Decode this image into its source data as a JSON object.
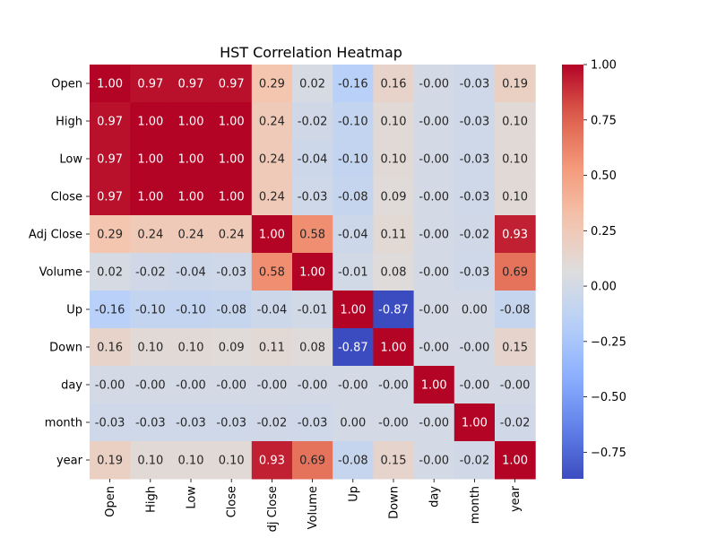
{
  "chart_data": {
    "type": "heatmap",
    "title": "HST Correlation Heatmap",
    "x_labels": [
      "Open",
      "High",
      "Low",
      "Close",
      "dj Close",
      "Volume",
      "Up",
      "Down",
      "day",
      "month",
      "year"
    ],
    "y_labels": [
      "Open",
      "High",
      "Low",
      "Close",
      "Adj Close",
      "Volume",
      "Up",
      "Down",
      "day",
      "month",
      "year"
    ],
    "values": [
      [
        1.0,
        0.97,
        0.97,
        0.97,
        0.29,
        0.02,
        -0.16,
        0.16,
        -0.0,
        -0.03,
        0.19
      ],
      [
        0.97,
        1.0,
        1.0,
        1.0,
        0.24,
        -0.02,
        -0.1,
        0.1,
        -0.0,
        -0.03,
        0.1
      ],
      [
        0.97,
        1.0,
        1.0,
        1.0,
        0.24,
        -0.04,
        -0.1,
        0.1,
        -0.0,
        -0.03,
        0.1
      ],
      [
        0.97,
        1.0,
        1.0,
        1.0,
        0.24,
        -0.03,
        -0.08,
        0.09,
        -0.0,
        -0.03,
        0.1
      ],
      [
        0.29,
        0.24,
        0.24,
        0.24,
        1.0,
        0.58,
        -0.04,
        0.11,
        -0.0,
        -0.02,
        0.93
      ],
      [
        0.02,
        -0.02,
        -0.04,
        -0.03,
        0.58,
        1.0,
        -0.01,
        0.08,
        -0.0,
        -0.03,
        0.69
      ],
      [
        -0.16,
        -0.1,
        -0.1,
        -0.08,
        -0.04,
        -0.01,
        1.0,
        -0.87,
        -0.0,
        0.0,
        -0.08
      ],
      [
        0.16,
        0.1,
        0.1,
        0.09,
        0.11,
        0.08,
        -0.87,
        1.0,
        -0.0,
        -0.0,
        0.15
      ],
      [
        -0.0,
        -0.0,
        -0.0,
        -0.0,
        -0.0,
        -0.0,
        -0.0,
        -0.0,
        1.0,
        -0.0,
        -0.0
      ],
      [
        -0.03,
        -0.03,
        -0.03,
        -0.03,
        -0.02,
        -0.03,
        0.0,
        -0.0,
        -0.0,
        1.0,
        -0.02
      ],
      [
        0.19,
        0.1,
        0.1,
        0.1,
        0.93,
        0.69,
        -0.08,
        0.15,
        -0.0,
        -0.02,
        1.0
      ]
    ],
    "cell_labels": [
      [
        "1.00",
        "0.97",
        "0.97",
        "0.97",
        "0.29",
        "0.02",
        "-0.16",
        "0.16",
        "-0.00",
        "-0.03",
        "0.19"
      ],
      [
        "0.97",
        "1.00",
        "1.00",
        "1.00",
        "0.24",
        "-0.02",
        "-0.10",
        "0.10",
        "-0.00",
        "-0.03",
        "0.10"
      ],
      [
        "0.97",
        "1.00",
        "1.00",
        "1.00",
        "0.24",
        "-0.04",
        "-0.10",
        "0.10",
        "-0.00",
        "-0.03",
        "0.10"
      ],
      [
        "0.97",
        "1.00",
        "1.00",
        "1.00",
        "0.24",
        "-0.03",
        "-0.08",
        "0.09",
        "-0.00",
        "-0.03",
        "0.10"
      ],
      [
        "0.29",
        "0.24",
        "0.24",
        "0.24",
        "1.00",
        "0.58",
        "-0.04",
        "0.11",
        "-0.00",
        "-0.02",
        "0.93"
      ],
      [
        "0.02",
        "-0.02",
        "-0.04",
        "-0.03",
        "0.58",
        "1.00",
        "-0.01",
        "0.08",
        "-0.00",
        "-0.03",
        "0.69"
      ],
      [
        "-0.16",
        "-0.10",
        "-0.10",
        "-0.08",
        "-0.04",
        "-0.01",
        "1.00",
        "-0.87",
        "-0.00",
        "0.00",
        "-0.08"
      ],
      [
        "0.16",
        "0.10",
        "0.10",
        "0.09",
        "0.11",
        "0.08",
        "-0.87",
        "1.00",
        "-0.00",
        "-0.00",
        "0.15"
      ],
      [
        "-0.00",
        "-0.00",
        "-0.00",
        "-0.00",
        "-0.00",
        "-0.00",
        "-0.00",
        "-0.00",
        "1.00",
        "-0.00",
        "-0.00"
      ],
      [
        "-0.03",
        "-0.03",
        "-0.03",
        "-0.03",
        "-0.02",
        "-0.03",
        "0.00",
        "-0.00",
        "-0.00",
        "1.00",
        "-0.02"
      ],
      [
        "0.19",
        "0.10",
        "0.10",
        "0.10",
        "0.93",
        "0.69",
        "-0.08",
        "0.15",
        "-0.00",
        "-0.02",
        "1.00"
      ]
    ],
    "colormap": "coolwarm",
    "colorbar": {
      "min": -0.87,
      "max": 1.0,
      "ticks": [
        1.0,
        0.75,
        0.5,
        0.25,
        0.0,
        -0.25,
        -0.5,
        -0.75
      ],
      "tick_labels": [
        "1.00",
        "0.75",
        "0.50",
        "0.25",
        "0.00",
        "−0.25",
        "−0.50",
        "−0.75"
      ]
    },
    "grid": false
  }
}
